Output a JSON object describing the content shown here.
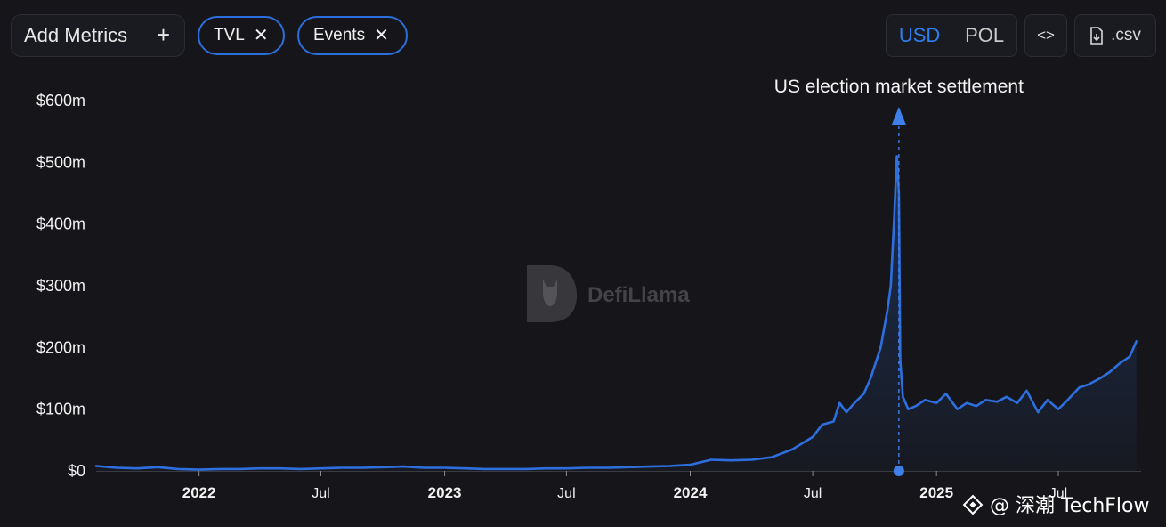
{
  "toolbar": {
    "add_metrics_label": "Add Metrics",
    "add_icon": "plus-icon",
    "chips": [
      {
        "label": "TVL",
        "icon": "close-icon"
      },
      {
        "label": "Events",
        "icon": "close-icon"
      }
    ],
    "currency": {
      "options": [
        "USD",
        "POL"
      ],
      "selected": "USD"
    },
    "embed_icon": "code-icon",
    "csv_label": ".csv",
    "csv_icon": "download-file-icon"
  },
  "colors": {
    "accent": "#2b6fdc",
    "line": "#2e6fe0",
    "background": "#16161a"
  },
  "watermark": {
    "text": "DefiLlama",
    "icon": "llama-logo-icon"
  },
  "source_credit": {
    "text": "@ 深潮 TechFlow",
    "icon": "binance-square-icon"
  },
  "chart_data": {
    "type": "area",
    "title": "",
    "xlabel": "",
    "ylabel": "",
    "series_name": "TVL",
    "x_range": [
      "2021-08",
      "2025-11"
    ],
    "ylim": [
      0,
      600
    ],
    "y_unit": "m",
    "y_ticks": [
      0,
      100,
      200,
      300,
      400,
      500,
      600
    ],
    "y_tick_labels": [
      "$0",
      "$100m",
      "$200m",
      "$300m",
      "$400m",
      "$500m",
      "$600m"
    ],
    "x_ticks": [
      {
        "date": "2022-01",
        "label": "2022",
        "bold": true
      },
      {
        "date": "2022-07",
        "label": "Jul",
        "bold": false
      },
      {
        "date": "2023-01",
        "label": "2023",
        "bold": true
      },
      {
        "date": "2023-07",
        "label": "Jul",
        "bold": false
      },
      {
        "date": "2024-01",
        "label": "2024",
        "bold": true
      },
      {
        "date": "2024-07",
        "label": "Jul",
        "bold": false
      },
      {
        "date": "2025-01",
        "label": "2025",
        "bold": true
      },
      {
        "date": "2025-07",
        "label": "Jul",
        "bold": false
      }
    ],
    "series": [
      {
        "name": "TVL",
        "points": [
          [
            "2021-08-01",
            8
          ],
          [
            "2021-09-01",
            5
          ],
          [
            "2021-10-01",
            4
          ],
          [
            "2021-11-01",
            6
          ],
          [
            "2021-12-01",
            3
          ],
          [
            "2022-01-01",
            2
          ],
          [
            "2022-02-01",
            3
          ],
          [
            "2022-03-01",
            3
          ],
          [
            "2022-04-01",
            4
          ],
          [
            "2022-05-01",
            4
          ],
          [
            "2022-06-01",
            3
          ],
          [
            "2022-07-01",
            4
          ],
          [
            "2022-08-01",
            5
          ],
          [
            "2022-09-01",
            5
          ],
          [
            "2022-10-01",
            6
          ],
          [
            "2022-11-01",
            7
          ],
          [
            "2022-12-01",
            5
          ],
          [
            "2023-01-01",
            5
          ],
          [
            "2023-02-01",
            4
          ],
          [
            "2023-03-01",
            3
          ],
          [
            "2023-04-01",
            3
          ],
          [
            "2023-05-01",
            3
          ],
          [
            "2023-06-01",
            4
          ],
          [
            "2023-07-01",
            4
          ],
          [
            "2023-08-01",
            5
          ],
          [
            "2023-09-01",
            5
          ],
          [
            "2023-10-01",
            6
          ],
          [
            "2023-11-01",
            7
          ],
          [
            "2023-12-01",
            8
          ],
          [
            "2024-01-01",
            10
          ],
          [
            "2024-02-01",
            18
          ],
          [
            "2024-03-01",
            17
          ],
          [
            "2024-04-01",
            18
          ],
          [
            "2024-05-01",
            22
          ],
          [
            "2024-06-01",
            35
          ],
          [
            "2024-07-01",
            55
          ],
          [
            "2024-07-15",
            75
          ],
          [
            "2024-08-01",
            80
          ],
          [
            "2024-08-10",
            110
          ],
          [
            "2024-08-20",
            95
          ],
          [
            "2024-09-01",
            110
          ],
          [
            "2024-09-15",
            125
          ],
          [
            "2024-09-25",
            150
          ],
          [
            "2024-10-01",
            170
          ],
          [
            "2024-10-10",
            200
          ],
          [
            "2024-10-20",
            260
          ],
          [
            "2024-10-25",
            300
          ],
          [
            "2024-10-30",
            410
          ],
          [
            "2024-11-03",
            510
          ],
          [
            "2024-11-06",
            450
          ],
          [
            "2024-11-08",
            180
          ],
          [
            "2024-11-12",
            120
          ],
          [
            "2024-11-20",
            100
          ],
          [
            "2024-12-01",
            105
          ],
          [
            "2024-12-15",
            115
          ],
          [
            "2025-01-01",
            110
          ],
          [
            "2025-01-15",
            125
          ],
          [
            "2025-02-01",
            100
          ],
          [
            "2025-02-15",
            110
          ],
          [
            "2025-03-01",
            105
          ],
          [
            "2025-03-15",
            115
          ],
          [
            "2025-04-01",
            112
          ],
          [
            "2025-04-15",
            120
          ],
          [
            "2025-05-01",
            110
          ],
          [
            "2025-05-15",
            130
          ],
          [
            "2025-06-01",
            95
          ],
          [
            "2025-06-15",
            115
          ],
          [
            "2025-07-01",
            100
          ],
          [
            "2025-07-15",
            115
          ],
          [
            "2025-08-01",
            135
          ],
          [
            "2025-08-15",
            140
          ],
          [
            "2025-09-01",
            150
          ],
          [
            "2025-09-15",
            160
          ],
          [
            "2025-10-01",
            175
          ],
          [
            "2025-10-15",
            185
          ],
          [
            "2025-10-25",
            210
          ]
        ]
      }
    ],
    "annotations": [
      {
        "date": "2024-11-06",
        "label": "US election market settlement",
        "type": "event-marker"
      }
    ]
  }
}
